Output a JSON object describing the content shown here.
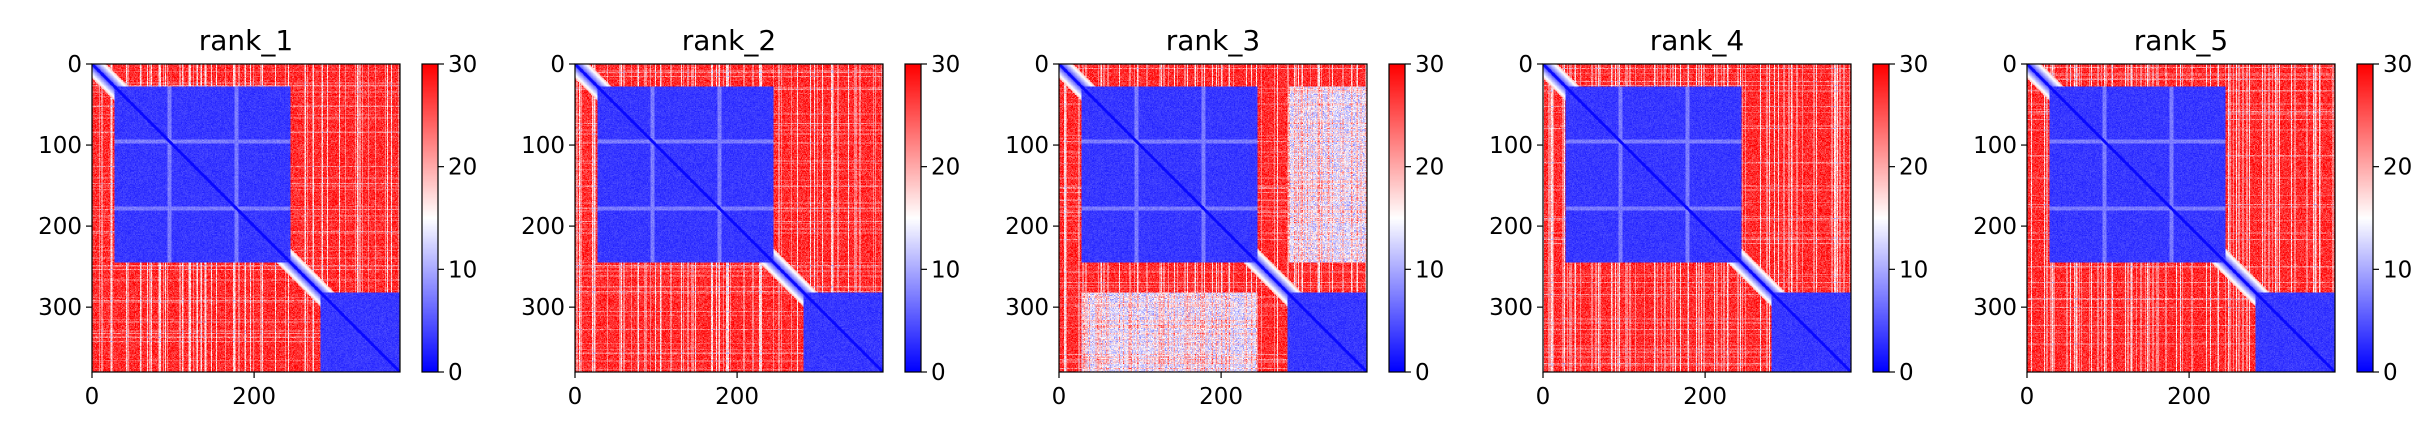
{
  "chart_data": [
    {
      "type": "heatmap",
      "title": "rank_1",
      "n": 380,
      "xticks": [
        0,
        200
      ],
      "yticks": [
        0,
        100,
        200,
        300
      ],
      "colorbar": {
        "min": 0,
        "max": 30,
        "ticks": [
          0,
          10,
          20,
          30
        ],
        "colors": [
          "#0000ff",
          "#ffffff",
          "#ff0000"
        ]
      },
      "domains": [
        [
          28,
          245
        ],
        [
          282,
          380
        ]
      ],
      "inter_domain_level": "high"
    },
    {
      "type": "heatmap",
      "title": "rank_2",
      "n": 380,
      "xticks": [
        0,
        200
      ],
      "yticks": [
        0,
        100,
        200,
        300
      ],
      "colorbar": {
        "min": 0,
        "max": 30,
        "ticks": [
          0,
          10,
          20,
          30
        ],
        "colors": [
          "#0000ff",
          "#ffffff",
          "#ff0000"
        ]
      },
      "domains": [
        [
          28,
          245
        ],
        [
          282,
          380
        ]
      ],
      "inter_domain_level": "high"
    },
    {
      "type": "heatmap",
      "title": "rank_3",
      "n": 380,
      "xticks": [
        0,
        200
      ],
      "yticks": [
        0,
        100,
        200,
        300
      ],
      "colorbar": {
        "min": 0,
        "max": 30,
        "ticks": [
          0,
          10,
          20,
          30
        ],
        "colors": [
          "#0000ff",
          "#ffffff",
          "#ff0000"
        ]
      },
      "domains": [
        [
          28,
          245
        ],
        [
          282,
          380
        ]
      ],
      "inter_domain_level": "mixed"
    },
    {
      "type": "heatmap",
      "title": "rank_4",
      "n": 380,
      "xticks": [
        0,
        200
      ],
      "yticks": [
        0,
        100,
        200,
        300
      ],
      "colorbar": {
        "min": 0,
        "max": 30,
        "ticks": [
          0,
          10,
          20,
          30
        ],
        "colors": [
          "#0000ff",
          "#ffffff",
          "#ff0000"
        ]
      },
      "domains": [
        [
          28,
          245
        ],
        [
          282,
          380
        ]
      ],
      "inter_domain_level": "high"
    },
    {
      "type": "heatmap",
      "title": "rank_5",
      "n": 380,
      "xticks": [
        0,
        200
      ],
      "yticks": [
        0,
        100,
        200,
        300
      ],
      "colorbar": {
        "min": 0,
        "max": 30,
        "ticks": [
          0,
          10,
          20,
          30
        ],
        "colors": [
          "#0000ff",
          "#ffffff",
          "#ff0000"
        ]
      },
      "domains": [
        [
          28,
          245
        ],
        [
          282,
          380
        ]
      ],
      "inter_domain_level": "high"
    }
  ]
}
